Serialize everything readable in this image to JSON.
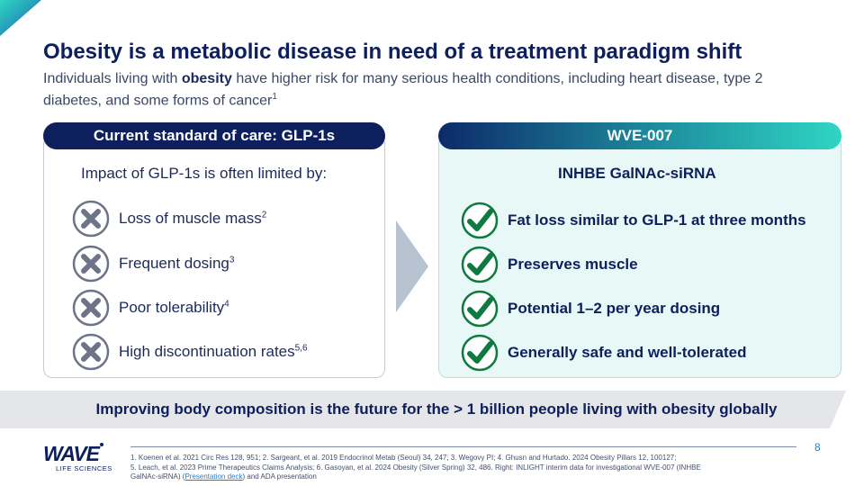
{
  "slide": {
    "title": "Obesity is a metabolic disease in need of a treatment paradigm shift",
    "subtitle": {
      "pre": "Individuals living with ",
      "bold": "obesity",
      "post": " have higher risk for many serious health conditions, including heart disease, type 2 diabetes, and some forms of cancer",
      "sup": "1"
    }
  },
  "left_panel": {
    "header": "Current standard of care: GLP-1s",
    "heading": "Impact of GLP-1s is often limited by:",
    "items": [
      {
        "label": "Loss of muscle mass",
        "sup": "2",
        "icon": "x-circle-icon"
      },
      {
        "label": "Frequent dosing",
        "sup": "3",
        "icon": "x-circle-icon"
      },
      {
        "label": "Poor tolerability",
        "sup": "4",
        "icon": "x-circle-icon"
      },
      {
        "label": "High discontinuation rates",
        "sup": "5,6",
        "icon": "x-circle-icon"
      }
    ]
  },
  "right_panel": {
    "header": "WVE-007",
    "heading": "INHBE GalNAc-siRNA",
    "items": [
      {
        "label": "Fat loss similar to GLP-1 at three months",
        "icon": "check-circle-icon"
      },
      {
        "label": "Preserves muscle",
        "icon": "check-circle-icon"
      },
      {
        "label": "Potential 1–2 per year dosing",
        "icon": "check-circle-icon"
      },
      {
        "label": "Generally safe and well-tolerated",
        "icon": "check-circle-icon"
      }
    ]
  },
  "banner": {
    "text": "Improving body composition is the future for the > 1 billion people living with obesity globally"
  },
  "footer": {
    "page_number": "8",
    "logo_word": "WAVE",
    "logo_sub": "LIFE SCIENCES",
    "refs_line1": "1. Koenen et al. 2021 Circ Res 128, 951;  2. Sargeant, et al. 2019  Endocrinol Metab (Seoul) 34, 247; 3. Wegovy PI;  4. Ghusn and Hurtado. 2024 Obesity Pillars 12, 100127;",
    "refs_line2": "5. Leach, et al. 2023 Prime Therapeutics Claims Analysis;  6. Gasoyan, et al. 2024 Obesity (Silver Spring) 32, 486. Right: INLIGHT interim data for investigational WVE-007 (INHBE",
    "refs_line3_pre": "GalNAc-siRNA) (",
    "refs_link": "Presentation deck",
    "refs_line3_post": ") and ADA presentation"
  },
  "colors": {
    "navy": "#0d1f5c",
    "teal": "#2fd5c4",
    "check_green": "#0f7a3f",
    "x_gray": "#6e7488",
    "right_panel_bg": "#e8f8f6",
    "banner_bg": "#e4e6ea",
    "arrow": "#b7c3d0"
  }
}
